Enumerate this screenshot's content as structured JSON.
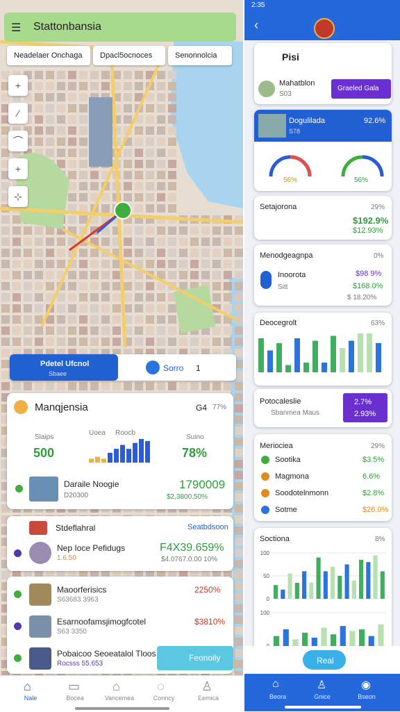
{
  "status": {
    "time": "2:35"
  },
  "map_app": {
    "title": "Stattonbansia",
    "chips": [
      "Neadelaer Onchaga",
      "Dpacl5ocnoces",
      "Senonnolcia"
    ],
    "route_panel": {
      "title": "Pdetel Ufcnol",
      "subtitle": "Sbaee",
      "option": "Sorro",
      "count": "1"
    },
    "summary": {
      "title": "Manqjensia",
      "badge": "G4",
      "percent": "77%",
      "stat_left": {
        "label": "Slaips",
        "value": "500"
      },
      "stat_right": {
        "label": "Suino",
        "value": "78%"
      },
      "chart_labels": [
        "Uoea",
        "Roocb"
      ],
      "chart_values": [
        2,
        3,
        2,
        5,
        7,
        9,
        7,
        10,
        12,
        11
      ],
      "item": {
        "name": "Daraile Noogie",
        "sub": "D20300",
        "amount": "1790009",
        "change": "$2,3800.50%"
      }
    },
    "card2": {
      "title": "Stdeflahral",
      "link": "Seatbdsoon",
      "name": "Nep Ioce Pefidugs",
      "sub": "1.6.50",
      "amount": "F4X39.659%",
      "change": "$4.0767.0.00 10%"
    },
    "list": [
      {
        "name": "Maoorferisics",
        "sub": "S63683 3963",
        "value": "2250%"
      },
      {
        "name": "Esarnoofamsjimogfcotel",
        "sub": "S63 3350",
        "value": "$3810%"
      },
      {
        "name": "Pobaicoo Seoeatalol Tloos",
        "sub": "Rocsss 55.653"
      }
    ],
    "fab": "Feonoily",
    "nav": [
      "Nale",
      "Bocea",
      "Vancemea",
      "Conncy",
      "Eemica"
    ]
  },
  "dashboard": {
    "header": {
      "title": "Pisi",
      "user": "Mahatblon",
      "user_sub": "S03",
      "button": "Graeled Gala"
    },
    "highlight": {
      "title": "Dogulilada",
      "sub": "S78",
      "value": "92.6%",
      "gauges": [
        "56%",
        "56%"
      ]
    },
    "card_a": {
      "title": "Setajorona",
      "percent": "29%",
      "line1": "$192.9%",
      "line2": "$12.93%"
    },
    "card_b": {
      "title": "Menodgeagnpa",
      "percent": "0%",
      "name": "Inoorota",
      "sub": "Sitt",
      "v1": "$98 9%",
      "v2": "$168.0%",
      "v3": "$ 18.20%"
    },
    "card_c": {
      "title": "Deocegrolt",
      "percent": "63%",
      "values": [
        14,
        9,
        12,
        3,
        14,
        4,
        13,
        4,
        15,
        10,
        13,
        16,
        16,
        12
      ]
    },
    "card_d": {
      "title": "Potocaleslie",
      "sub": "Sbanmea Maus",
      "v1": "2.7%",
      "v2": "2.93%"
    },
    "card_e": {
      "title": "Meriociea",
      "percent": "29%",
      "rows": [
        {
          "name": "Sootika",
          "value": "$3.5%"
        },
        {
          "name": "Magmona",
          "value": "6.6%"
        },
        {
          "name": "Soodotelnmonn",
          "value": "$2.8%"
        },
        {
          "name": "Sotme",
          "value": "$26.0%"
        }
      ]
    },
    "card_f": {
      "title": "Soctiona",
      "percent": "8%",
      "chart": {
        "ylim": [
          0,
          100
        ],
        "yticks": [
          0,
          50,
          100
        ],
        "values": [
          30,
          20,
          55,
          35,
          60,
          35,
          90,
          60,
          70,
          50,
          75,
          40,
          85,
          80,
          95,
          60
        ]
      },
      "chart2": {
        "ylim": [
          0,
          100
        ],
        "yticks": [
          0,
          100
        ],
        "values": [
          30,
          50,
          20,
          40,
          25,
          55,
          35,
          60,
          45,
          50,
          30,
          65
        ]
      }
    },
    "action": "Real",
    "nav": [
      "Beora",
      "Gnice",
      "Bseon"
    ]
  }
}
